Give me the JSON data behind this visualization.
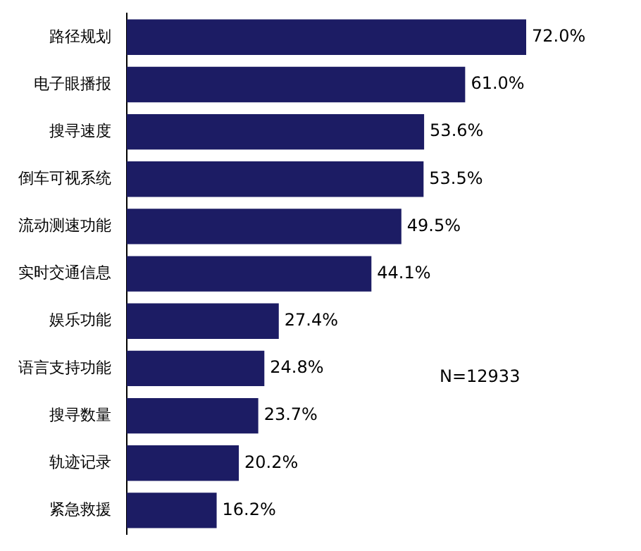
{
  "chart_data": {
    "type": "bar",
    "orientation": "horizontal",
    "categories": [
      "路径规划",
      "电子眼播报",
      "搜寻速度",
      "倒车可视系统",
      "流动测速功能",
      "实时交通信息",
      "娱乐功能",
      "语言支持功能",
      "搜寻数量",
      "轨迹记录",
      "紧急救援"
    ],
    "values": [
      72.0,
      61.0,
      53.6,
      53.5,
      49.5,
      44.1,
      27.4,
      24.8,
      23.7,
      20.2,
      16.2
    ],
    "value_labels": [
      "72.0%",
      "61.0%",
      "53.6%",
      "53.5%",
      "49.5%",
      "44.1%",
      "27.4%",
      "24.8%",
      "23.7%",
      "20.2%",
      "16.2%"
    ],
    "color": "#1c1c64",
    "annotations": [
      "N=12933"
    ]
  }
}
